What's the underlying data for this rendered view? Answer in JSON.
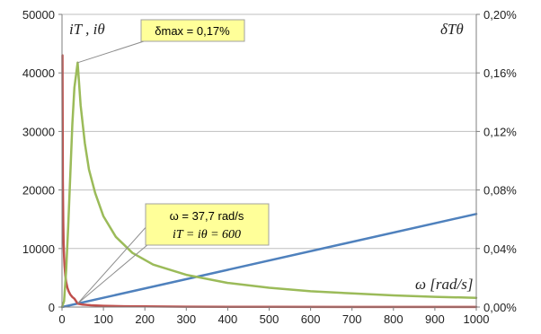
{
  "chart_data": {
    "type": "line",
    "x_ticks": [
      0,
      100,
      200,
      300,
      400,
      500,
      600,
      700,
      800,
      900,
      1000
    ],
    "x_tick_labels": [
      "0",
      "100",
      "200",
      "300",
      "400",
      "500",
      "600",
      "700",
      "800",
      "900",
      "1000"
    ],
    "y_left_ticks": [
      0,
      10000,
      20000,
      30000,
      40000,
      50000
    ],
    "y_left_tick_labels": [
      "0",
      "10000",
      "20000",
      "30000",
      "40000",
      "50000"
    ],
    "y_right_ticks": [
      0,
      0.0004,
      0.0008,
      0.0012,
      0.0016,
      0.002
    ],
    "y_right_tick_labels": [
      "0,00%",
      "0,04%",
      "0,08%",
      "0,12%",
      "0,16%",
      "0,20%"
    ],
    "xlim": [
      0,
      1000
    ],
    "ylim_left": [
      0,
      50000
    ],
    "ylim_right": [
      0,
      0.002
    ],
    "grid": "horizontal",
    "xlabel": "ω [rad/s]",
    "ylabel_left": "iT , iθ",
    "ylabel_right": "δTθ",
    "series": [
      {
        "axis": "left",
        "color": "#4f81bd",
        "x": [
          0,
          1000
        ],
        "y": [
          0,
          15900
        ]
      },
      {
        "axis": "left",
        "color": "#c0504d",
        "x": [
          1,
          2,
          3,
          4,
          5,
          6,
          8,
          10,
          13,
          16,
          20,
          25,
          30,
          37.7,
          50,
          70,
          100,
          150,
          200,
          300,
          500,
          1000
        ],
        "y": [
          43000,
          21500,
          14300,
          10700,
          8600,
          7100,
          5400,
          4300,
          3300,
          2700,
          2150,
          1720,
          1430,
          600,
          420,
          300,
          210,
          140,
          100,
          60,
          30,
          10
        ]
      },
      {
        "axis": "right",
        "color": "#9bbb59",
        "x": [
          0,
          5,
          10,
          15,
          20,
          25,
          30,
          37.7,
          45,
          55,
          65,
          80,
          100,
          130,
          170,
          220,
          300,
          400,
          500,
          600,
          700,
          800,
          900,
          1000
        ],
        "y": [
          0,
          4e-05,
          0.00025,
          0.00055,
          0.0009,
          0.00125,
          0.0015,
          0.00167,
          0.00138,
          0.00112,
          0.00094,
          0.00078,
          0.00062,
          0.00048,
          0.00037,
          0.00029,
          0.00022,
          0.000165,
          0.000132,
          0.000108,
          9.3e-05,
          8e-05,
          7e-05,
          6.3e-05
        ]
      }
    ],
    "annotations": [
      {
        "text": "δmax = 0,17%",
        "x": 37.7,
        "y": 0.00167,
        "axis": "right"
      },
      {
        "lines": [
          "ω = 37,7 rad/s",
          "iT = iθ = 600"
        ],
        "x": 37.7,
        "y": 600,
        "axis": "left"
      }
    ]
  },
  "colors": {
    "grid": "#bfbfbf",
    "callout_fill": "#ffff99",
    "callout_border": "#a0a0a0"
  }
}
